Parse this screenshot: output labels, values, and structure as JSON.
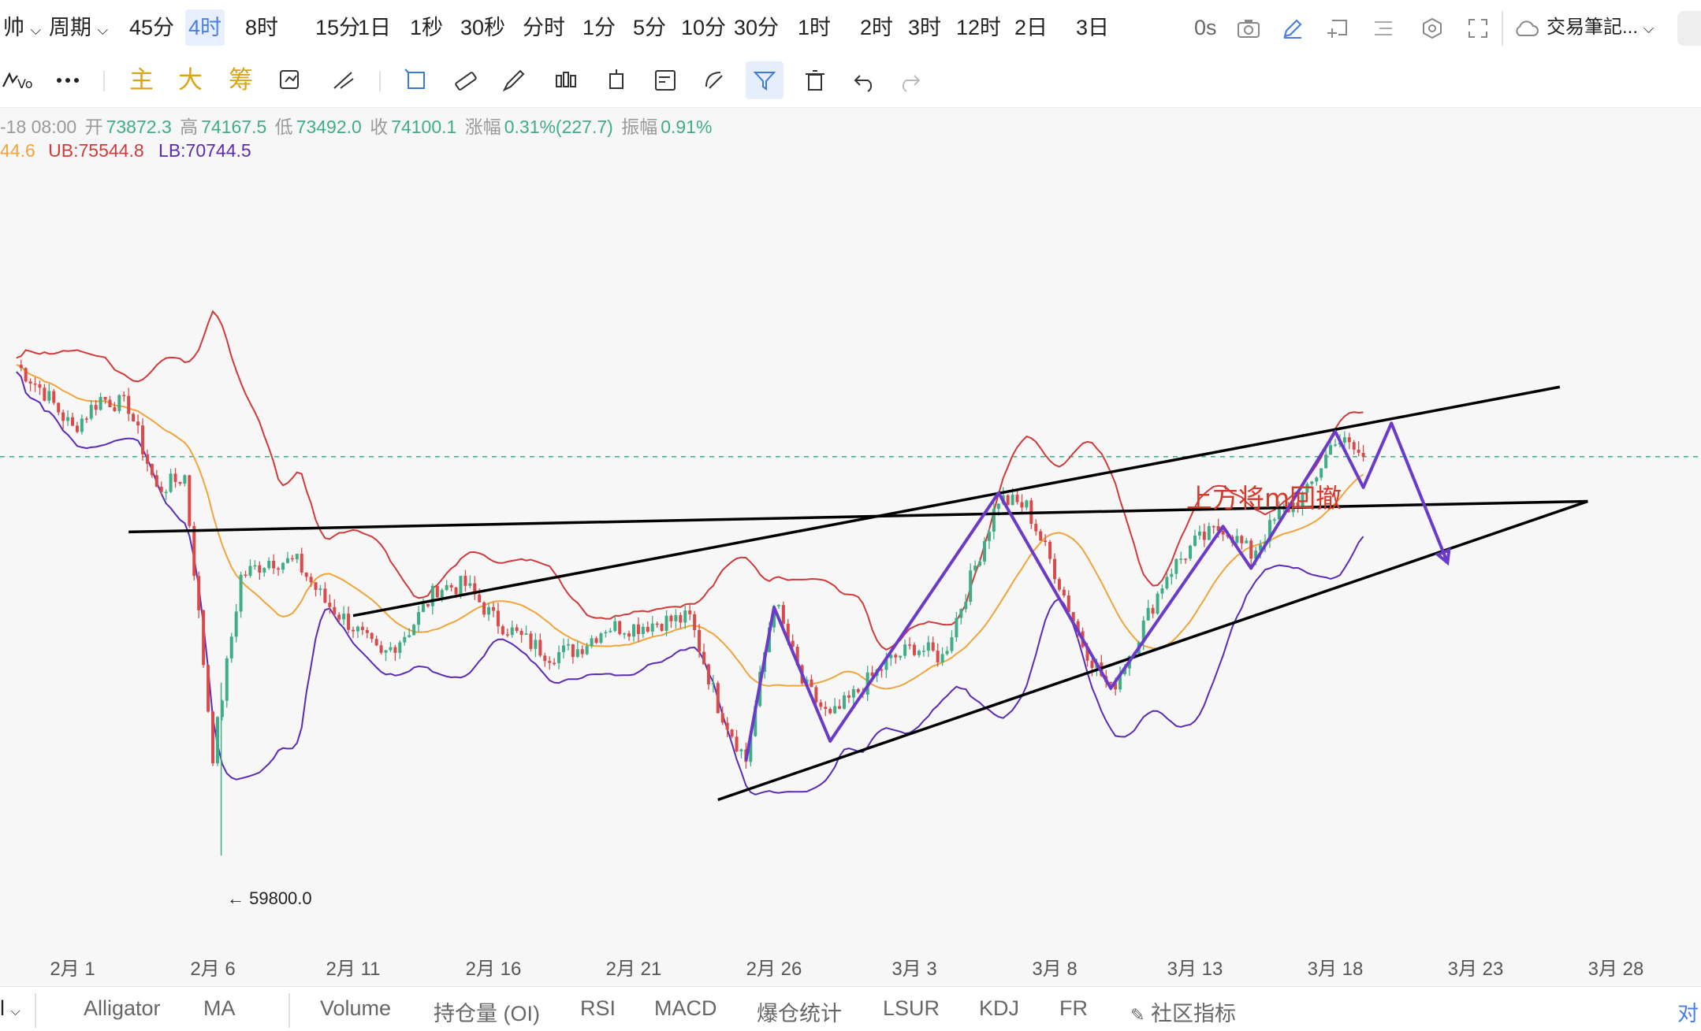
{
  "topbar": {
    "symbol_fragment": "帅",
    "period_label": "周期",
    "timeframes": [
      "45分",
      "4时",
      "8时",
      "15分",
      "1日",
      "1秒",
      "30秒",
      "分时",
      "1分",
      "5分",
      "10分",
      "30分",
      "1时",
      "2时",
      "3时",
      "12时",
      "2日",
      "3日"
    ],
    "active_timeframe": "4时",
    "countdown": "0s",
    "notes_label": "交易筆記...",
    "right_edge_text": ""
  },
  "toolbar": {
    "icons": [
      "indicator-icon",
      "more-icon"
    ],
    "chip_main": "主",
    "chip_big": "大",
    "chip_chip": "筹",
    "tool_icons": [
      "shape-tool-icon",
      "measure-tool-icon",
      "rectangle-tool-icon",
      "ruler-icon",
      "brush-icon",
      "candlestick-pattern-icon",
      "text-box-icon",
      "note-icon",
      "magnet-icon",
      "filter-icon",
      "delete-icon",
      "undo-icon",
      "redo-icon"
    ]
  },
  "info": {
    "time": "-18 08:00",
    "open_label": "开",
    "open": "73872.3",
    "high_label": "高",
    "high": "74167.5",
    "low_label": "低",
    "low": "73492.0",
    "close_label": "收",
    "close": "74100.1",
    "change_label": "涨幅",
    "change": "0.31%(227.7)",
    "amplitude_label": "振幅",
    "amplitude": "0.91%",
    "mb_fragment": "44.6",
    "ub": "UB:75544.8",
    "lb": "LB:70744.5"
  },
  "colors": {
    "up": "#3fae84",
    "down": "#d94a4a",
    "upper_band": "#d13a3a",
    "lower_band": "#5b2bb5",
    "mid_band": "#f2a43a",
    "wave": "#6a3bc8",
    "trendline": "#000000",
    "annotation": "#d63a2a",
    "current_price": "#3fae84"
  },
  "annotation": {
    "text": "上方将m回撤"
  },
  "low_marker": "← 59800.0",
  "chart_data": {
    "type": "candlestick",
    "x_ticks": [
      "2月 1",
      "2月 6",
      "2月 11",
      "2月 16",
      "2月 21",
      "2月 26",
      "3月 3",
      "3月 8",
      "3月 13",
      "3月 18",
      "3月 23",
      "3月 28"
    ],
    "y_range": [
      58000,
      82000
    ],
    "last_price": 74100.1,
    "lowest_price": 59800.0,
    "series": [
      {
        "name": "UB",
        "values_desc": "upper Bollinger band"
      },
      {
        "name": "LB",
        "values_desc": "lower Bollinger band"
      }
    ],
    "price_path": [
      {
        "date": "1/30",
        "price": 77400
      },
      {
        "date": "1/31",
        "price": 76400
      },
      {
        "date": "2/1",
        "price": 75100
      },
      {
        "date": "2/2",
        "price": 76200
      },
      {
        "date": "2/3",
        "price": 75900
      },
      {
        "date": "2/4",
        "price": 72900
      },
      {
        "date": "2/5",
        "price": 73400
      },
      {
        "date": "2/6",
        "price": 63400
      },
      {
        "date": "2/7",
        "price": 69800
      },
      {
        "date": "2/8",
        "price": 70400
      },
      {
        "date": "2/9",
        "price": 70300
      },
      {
        "date": "2/10",
        "price": 68900
      },
      {
        "date": "2/11",
        "price": 68000
      },
      {
        "date": "2/12",
        "price": 66900
      },
      {
        "date": "2/13",
        "price": 67900
      },
      {
        "date": "2/14",
        "price": 69400
      },
      {
        "date": "2/15",
        "price": 69500
      },
      {
        "date": "2/16",
        "price": 68300
      },
      {
        "date": "2/17",
        "price": 67600
      },
      {
        "date": "2/18",
        "price": 67000
      },
      {
        "date": "2/19",
        "price": 67200
      },
      {
        "date": "2/20",
        "price": 68000
      },
      {
        "date": "2/21",
        "price": 68000
      },
      {
        "date": "2/22",
        "price": 68200
      },
      {
        "date": "2/23",
        "price": 68300
      },
      {
        "date": "2/24",
        "price": 65200
      },
      {
        "date": "2/25",
        "price": 63200
      },
      {
        "date": "2/26",
        "price": 69000
      },
      {
        "date": "2/27",
        "price": 66000
      },
      {
        "date": "2/28",
        "price": 64700
      },
      {
        "date": "3/1",
        "price": 66700
      },
      {
        "date": "3/2",
        "price": 67300
      },
      {
        "date": "3/3",
        "price": 66900
      },
      {
        "date": "3/4",
        "price": 69700
      },
      {
        "date": "3/5",
        "price": 72600
      },
      {
        "date": "3/6",
        "price": 72300
      },
      {
        "date": "3/7",
        "price": 70000
      },
      {
        "date": "3/8",
        "price": 67400
      },
      {
        "date": "3/9",
        "price": 65700
      },
      {
        "date": "3/10",
        "price": 67700
      },
      {
        "date": "3/11",
        "price": 69900
      },
      {
        "date": "3/12",
        "price": 71000
      },
      {
        "date": "3/13",
        "price": 71600
      },
      {
        "date": "3/14",
        "price": 70600
      },
      {
        "date": "3/15",
        "price": 72000
      },
      {
        "date": "3/16",
        "price": 72800
      },
      {
        "date": "3/17",
        "price": 74800
      },
      {
        "date": "3/18",
        "price": 74100
      }
    ],
    "trendlines": [
      {
        "from": {
          "date": "2/3",
          "price": 71400
        },
        "to": {
          "date": "3/26",
          "price": 72500
        }
      },
      {
        "from": {
          "date": "2/11",
          "price": 68400
        },
        "to": {
          "date": "3/25",
          "price": 76600
        }
      },
      {
        "from": {
          "date": "2/24",
          "price": 61800
        },
        "to": {
          "date": "3/26",
          "price": 72500
        }
      }
    ],
    "wave_path": [
      {
        "date": "2/25",
        "price": 63200
      },
      {
        "date": "2/26",
        "price": 68700
      },
      {
        "date": "2/28",
        "price": 63900
      },
      {
        "date": "3/5",
        "price": 72800
      },
      {
        "date": "3/9",
        "price": 65800
      },
      {
        "date": "3/13",
        "price": 71600
      },
      {
        "date": "3/14",
        "price": 70100
      },
      {
        "date": "3/17",
        "price": 75000
      },
      {
        "date": "3/18",
        "price": 73000
      },
      {
        "date": "3/19",
        "price": 75300
      },
      {
        "date": "3/21",
        "price": 70300
      }
    ]
  },
  "indicators": {
    "left_dropdown": "l",
    "main": [
      "Alligator",
      "MA"
    ],
    "sub": [
      "Volume",
      "持仓量 (OI)",
      "RSI",
      "MACD",
      "爆仓统计",
      "LSUR",
      "KDJ",
      "FR"
    ],
    "community": "社区指标",
    "right_edge": "对"
  }
}
